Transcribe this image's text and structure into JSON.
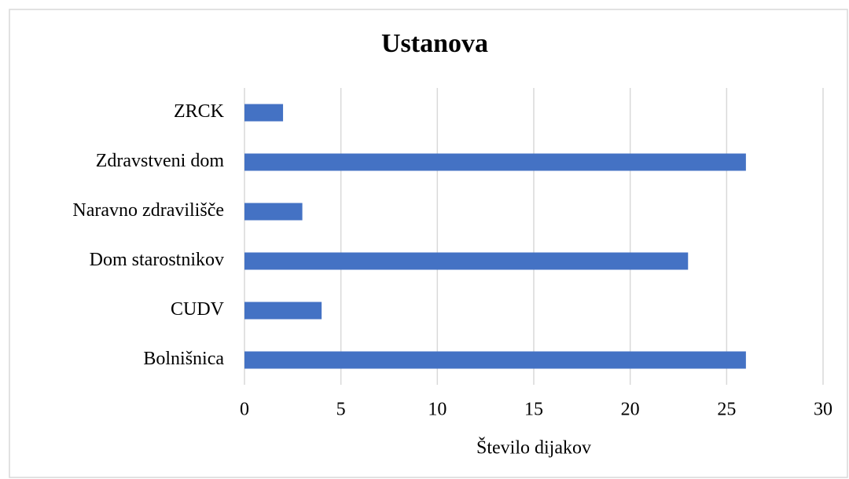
{
  "chart_data": {
    "type": "barh",
    "title": "Ustanova",
    "x_label": "Število dijakov",
    "categories": [
      "ZRCK",
      "Zdravstveni dom",
      "Naravno zdravilišče",
      "Dom starostnikov",
      "CUDV",
      "Bolnišnica"
    ],
    "values": [
      2,
      26,
      3,
      23,
      4,
      26
    ],
    "color": "#4472c4",
    "xlim": [
      0,
      30
    ],
    "xticks": [
      0,
      5,
      10,
      15,
      20,
      25,
      30
    ],
    "grid": true
  }
}
